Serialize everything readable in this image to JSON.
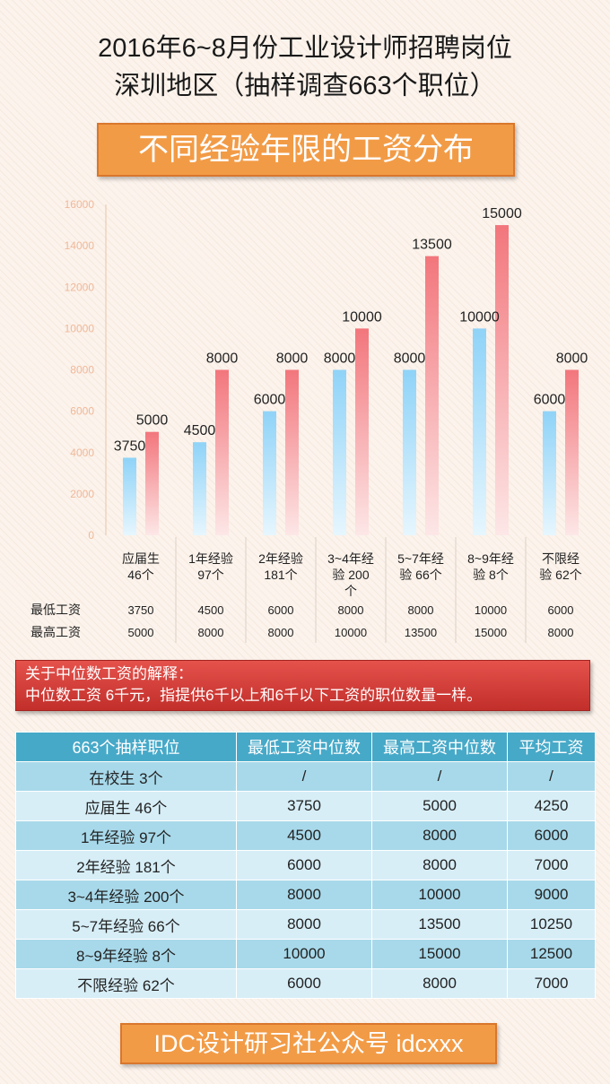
{
  "header": {
    "title_line1": "2016年6~8月份工业设计师招聘岗位",
    "title_line2": "深圳地区（抽样调查663个职位）",
    "banner": "不同经验年限的工资分布"
  },
  "chart_data": {
    "type": "bar",
    "title": "不同经验年限的工资分布",
    "categories": [
      "应届生 46个",
      "1年经验 97个",
      "2年经验 181个",
      "3~4年经验 200个",
      "5~7年经验 66个",
      "8~9年经验 8个",
      "不限经验 62个"
    ],
    "category_lines": [
      [
        "应届生",
        "46个"
      ],
      [
        "1年经验",
        "97个"
      ],
      [
        "2年经验",
        "181个"
      ],
      [
        "3~4年经",
        "验 200",
        "个"
      ],
      [
        "5~7年经",
        "验 66个"
      ],
      [
        "8~9年经",
        "验 8个"
      ],
      [
        "不限经",
        "验 62个"
      ]
    ],
    "series": [
      {
        "name": "最低工资",
        "values": [
          3750,
          4500,
          6000,
          8000,
          8000,
          10000,
          6000
        ],
        "color": "#8fd3f8"
      },
      {
        "name": "最高工资",
        "values": [
          5000,
          8000,
          8000,
          10000,
          13500,
          15000,
          8000
        ],
        "color": "#f2767c"
      }
    ],
    "ylim": [
      0,
      16000
    ],
    "yticks": [
      0,
      2000,
      4000,
      6000,
      8000,
      10000,
      12000,
      14000,
      16000
    ],
    "legend": "table-below",
    "grid": false
  },
  "note": {
    "line1": "关于中位数工资的解释：",
    "line2": "中位数工资 6千元，指提供6千以上和6千以下工资的职位数量一样。"
  },
  "table": {
    "headers": [
      "663个抽样职位",
      "最低工资中位数",
      "最高工资中位数",
      "平均工资"
    ],
    "rows": [
      [
        "在校生 3个",
        "/",
        "/",
        "/"
      ],
      [
        "应届生 46个",
        "3750",
        "5000",
        "4250"
      ],
      [
        "1年经验 97个",
        "4500",
        "8000",
        "6000"
      ],
      [
        "2年经验 181个",
        "6000",
        "8000",
        "7000"
      ],
      [
        "3~4年经验 200个",
        "8000",
        "10000",
        "9000"
      ],
      [
        "5~7年经验 66个",
        "8000",
        "13500",
        "10250"
      ],
      [
        "8~9年经验 8个",
        "10000",
        "15000",
        "12500"
      ],
      [
        "不限经验 62个",
        "6000",
        "8000",
        "7000"
      ]
    ]
  },
  "footer": "IDC设计研习社公众号 idcxxx"
}
